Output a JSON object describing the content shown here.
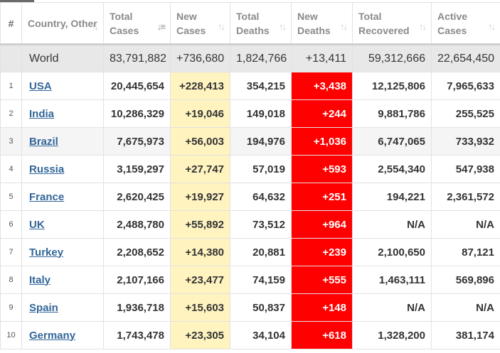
{
  "headers": {
    "index": "#",
    "country": "Country, Other",
    "total_cases": "Total Cases",
    "new_cases": "New Cases",
    "total_deaths": "Total Deaths",
    "new_deaths": "New Deaths",
    "total_recovered": "Total Recovered",
    "active_cases": "Active Cases"
  },
  "world": {
    "name": "World",
    "total_cases": "83,791,882",
    "new_cases": "+736,680",
    "total_deaths": "1,824,766",
    "new_deaths": "+13,411",
    "total_recovered": "59,312,666",
    "active_cases": "22,654,450"
  },
  "rows": [
    {
      "idx": "1",
      "name": "USA",
      "total_cases": "20,445,654",
      "new_cases": "+228,413",
      "total_deaths": "354,215",
      "new_deaths": "+3,438",
      "total_recovered": "12,125,806",
      "active_cases": "7,965,633"
    },
    {
      "idx": "2",
      "name": "India",
      "total_cases": "10,286,329",
      "new_cases": "+19,046",
      "total_deaths": "149,018",
      "new_deaths": "+244",
      "total_recovered": "9,881,786",
      "active_cases": "255,525"
    },
    {
      "idx": "3",
      "name": "Brazil",
      "total_cases": "7,675,973",
      "new_cases": "+56,003",
      "total_deaths": "194,976",
      "new_deaths": "+1,036",
      "total_recovered": "6,747,065",
      "active_cases": "733,932"
    },
    {
      "idx": "4",
      "name": "Russia",
      "total_cases": "3,159,297",
      "new_cases": "+27,747",
      "total_deaths": "57,019",
      "new_deaths": "+593",
      "total_recovered": "2,554,340",
      "active_cases": "547,938"
    },
    {
      "idx": "5",
      "name": "France",
      "total_cases": "2,620,425",
      "new_cases": "+19,927",
      "total_deaths": "64,632",
      "new_deaths": "+251",
      "total_recovered": "194,221",
      "active_cases": "2,361,572"
    },
    {
      "idx": "6",
      "name": "UK",
      "total_cases": "2,488,780",
      "new_cases": "+55,892",
      "total_deaths": "73,512",
      "new_deaths": "+964",
      "total_recovered": "N/A",
      "active_cases": "N/A"
    },
    {
      "idx": "7",
      "name": "Turkey",
      "total_cases": "2,208,652",
      "new_cases": "+14,380",
      "total_deaths": "20,881",
      "new_deaths": "+239",
      "total_recovered": "2,100,650",
      "active_cases": "87,121"
    },
    {
      "idx": "8",
      "name": "Italy",
      "total_cases": "2,107,166",
      "new_cases": "+23,477",
      "total_deaths": "74,159",
      "new_deaths": "+555",
      "total_recovered": "1,463,111",
      "active_cases": "569,896"
    },
    {
      "idx": "9",
      "name": "Spain",
      "total_cases": "1,936,718",
      "new_cases": "+15,603",
      "total_deaths": "50,837",
      "new_deaths": "+148",
      "total_recovered": "N/A",
      "active_cases": "N/A"
    },
    {
      "idx": "10",
      "name": "Germany",
      "total_cases": "1,743,478",
      "new_cases": "+23,305",
      "total_deaths": "34,104",
      "new_deaths": "+618",
      "total_recovered": "1,328,200",
      "active_cases": "381,174"
    }
  ],
  "colors": {
    "new_cases_bg": "#fff3c0",
    "new_deaths_bg": "#ff0000",
    "link": "#336699",
    "world_row_bg": "#e8e8e8"
  },
  "icons": {
    "sort_active": "sort-descending-icon",
    "sort_inactive": "sort-arrows-icon"
  }
}
